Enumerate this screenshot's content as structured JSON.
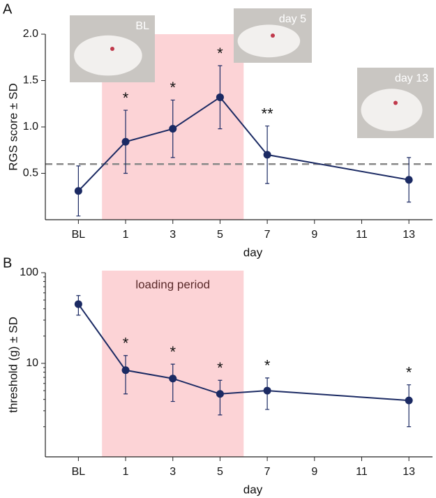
{
  "chart_data": [
    {
      "type": "line",
      "panel": "A",
      "y_label": "RGS score ± SD",
      "x_label": "day",
      "x": [
        -1,
        1,
        3,
        5,
        7,
        13
      ],
      "values": [
        0.31,
        0.84,
        0.98,
        1.32,
        0.7,
        0.43
      ],
      "errors": [
        0.27,
        0.34,
        0.31,
        0.34,
        0.31,
        0.24
      ],
      "color": "#1b2a63",
      "log_y": false,
      "xlim": [
        -2.4,
        14
      ],
      "xticks": [
        {
          "value": -1,
          "label": "BL"
        },
        1,
        3,
        5,
        7,
        9,
        11,
        13
      ],
      "ylim": [
        0,
        2
      ],
      "yticks": [
        0.5,
        {
          "value": 1,
          "label": "1.0"
        },
        1.5,
        {
          "value": 2,
          "label": "2.0"
        }
      ],
      "shade_x": [
        0,
        6
      ],
      "threshold_line": 0.6,
      "annotations": [
        {
          "x": 1,
          "text": "*"
        },
        {
          "x": 3,
          "text": "*"
        },
        {
          "x": 5,
          "text": "*"
        },
        {
          "x": 7,
          "text": "**"
        }
      ],
      "photos": [
        {
          "label": "BL"
        },
        {
          "label": "day 5"
        },
        {
          "label": "day 13"
        }
      ]
    },
    {
      "type": "line",
      "panel": "B",
      "y_label": "threshold (g) ± SD",
      "x_label": "day",
      "x": [
        -1,
        1,
        3,
        5,
        7,
        13
      ],
      "values": [
        45,
        8.4,
        6.8,
        4.6,
        5.0,
        3.9
      ],
      "errors": [
        11,
        3.8,
        3.0,
        1.9,
        1.9,
        1.9
      ],
      "color": "#1b2a63",
      "log_y": true,
      "xlim": [
        -2.4,
        14
      ],
      "xticks": [
        {
          "value": -1,
          "label": "BL"
        },
        1,
        3,
        5,
        7,
        9,
        11,
        13
      ],
      "ylim": [
        0.93,
        100
      ],
      "yticks": [
        10,
        100
      ],
      "shade_x": [
        0,
        6
      ],
      "shade_label": "loading period",
      "annotations": [
        {
          "x": 1,
          "text": "*"
        },
        {
          "x": 3,
          "text": "*"
        },
        {
          "x": 5,
          "text": "*"
        },
        {
          "x": 7,
          "text": "*"
        },
        {
          "x": 13,
          "text": "*"
        }
      ]
    }
  ]
}
